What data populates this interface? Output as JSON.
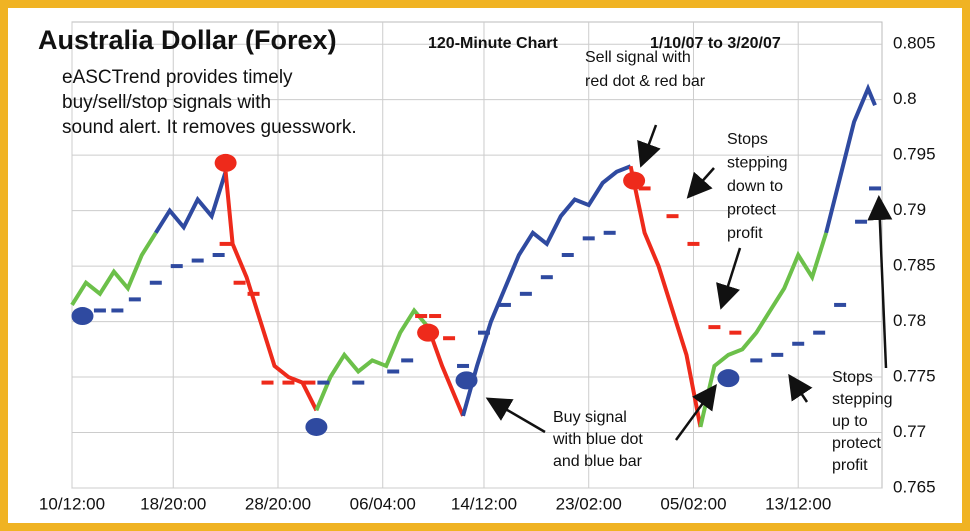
{
  "chart_data": {
    "type": "line",
    "title": "Australia Dollar (Forex)",
    "subtitle": "120-Minute Chart",
    "date_range": "1/10/07 to 3/20/07",
    "description": [
      "eASCTrend provides timely",
      "buy/sell/stop signals with",
      "sound alert. It removes guesswork."
    ],
    "annotations": [
      [
        "Sell signal with",
        "red dot & red bar"
      ],
      [
        "Stops",
        "stepping",
        "down to",
        "protect",
        "profit"
      ],
      [
        "Buy signal",
        "with blue dot",
        "and blue bar"
      ],
      [
        "Stops",
        "stepping",
        "up to",
        "protect",
        "profit"
      ]
    ],
    "xlim": [
      0,
      232
    ],
    "xticks": [
      {
        "value": 0,
        "label": "10/12:00"
      },
      {
        "value": 29,
        "label": "18/20:00"
      },
      {
        "value": 59,
        "label": "28/20:00"
      },
      {
        "value": 89,
        "label": "06/04:00"
      },
      {
        "value": 118,
        "label": "14/12:00"
      },
      {
        "value": 148,
        "label": "23/02:00"
      },
      {
        "value": 178,
        "label": "05/02:00"
      },
      {
        "value": 208,
        "label": "13/12:00"
      }
    ],
    "ylim": [
      0.765,
      0.807
    ],
    "yticks": [
      0.765,
      0.77,
      0.775,
      0.78,
      0.785,
      0.79,
      0.795,
      0.8,
      0.805
    ],
    "grid": true,
    "series": [
      {
        "color": "#6cc04a",
        "x": [
          0,
          4,
          8,
          12,
          16,
          20,
          24
        ],
        "values": [
          0.7815,
          0.7835,
          0.7825,
          0.7845,
          0.783,
          0.786,
          0.788
        ]
      },
      {
        "color": "#2f4aa0",
        "x": [
          24,
          28,
          32,
          36,
          40,
          44
        ],
        "values": [
          0.788,
          0.79,
          0.7885,
          0.791,
          0.7895,
          0.7935
        ]
      },
      {
        "color": "#ee2a1b",
        "x": [
          44,
          46,
          50,
          54,
          58,
          62,
          66,
          70
        ],
        "values": [
          0.7935,
          0.787,
          0.784,
          0.78,
          0.776,
          0.775,
          0.7745,
          0.772
        ]
      },
      {
        "color": "#6cc04a",
        "x": [
          70,
          74,
          78,
          82,
          86,
          90,
          94,
          98,
          102
        ],
        "values": [
          0.772,
          0.775,
          0.777,
          0.7755,
          0.7765,
          0.776,
          0.779,
          0.781,
          0.7795
        ]
      },
      {
        "color": "#ee2a1b",
        "x": [
          102,
          106,
          110,
          112
        ],
        "values": [
          0.7795,
          0.776,
          0.773,
          0.7715
        ]
      },
      {
        "color": "#2f4aa0",
        "x": [
          112,
          116,
          120,
          124,
          128,
          132,
          136,
          140,
          144,
          148,
          152,
          156,
          160
        ],
        "values": [
          0.7715,
          0.776,
          0.78,
          0.783,
          0.786,
          0.788,
          0.787,
          0.7895,
          0.791,
          0.7905,
          0.7925,
          0.7935,
          0.794
        ]
      },
      {
        "color": "#ee2a1b",
        "x": [
          160,
          164,
          168,
          172,
          176,
          180
        ],
        "values": [
          0.794,
          0.788,
          0.785,
          0.781,
          0.777,
          0.7705
        ]
      },
      {
        "color": "#6cc04a",
        "x": [
          180,
          184,
          188,
          192,
          196,
          200,
          204,
          208,
          212,
          216
        ],
        "values": [
          0.7705,
          0.776,
          0.777,
          0.7775,
          0.779,
          0.781,
          0.783,
          0.786,
          0.784,
          0.788
        ]
      },
      {
        "color": "#2f4aa0",
        "x": [
          216,
          220,
          224,
          228,
          230
        ],
        "values": [
          0.788,
          0.793,
          0.798,
          0.801,
          0.7995
        ]
      }
    ],
    "stops": [
      {
        "color": "#2f4aa0",
        "x": [
          3,
          8,
          13,
          18,
          24,
          30,
          36,
          42
        ],
        "values": [
          0.7805,
          0.781,
          0.781,
          0.782,
          0.7835,
          0.785,
          0.7855,
          0.786
        ]
      },
      {
        "color": "#ee2a1b",
        "x": [
          44,
          48,
          52,
          56,
          62,
          68
        ],
        "values": [
          0.787,
          0.7835,
          0.7825,
          0.7745,
          0.7745,
          0.7745
        ]
      },
      {
        "color": "#2f4aa0",
        "x": [
          72,
          82,
          92,
          96
        ],
        "values": [
          0.7745,
          0.7745,
          0.7755,
          0.7765
        ]
      },
      {
        "color": "#ee2a1b",
        "x": [
          100,
          104,
          108
        ],
        "values": [
          0.7805,
          0.7805,
          0.7785
        ]
      },
      {
        "color": "#2f4aa0",
        "x": [
          112,
          118,
          124,
          130,
          136,
          142,
          148,
          154
        ],
        "values": [
          0.776,
          0.779,
          0.7815,
          0.7825,
          0.784,
          0.786,
          0.7875,
          0.788
        ]
      },
      {
        "color": "#ee2a1b",
        "x": [
          164,
          172,
          178,
          184,
          190
        ],
        "values": [
          0.792,
          0.7895,
          0.787,
          0.7795,
          0.779
        ]
      },
      {
        "color": "#2f4aa0",
        "x": [
          196,
          202,
          208,
          214,
          220,
          226,
          230
        ],
        "values": [
          0.7765,
          0.777,
          0.778,
          0.779,
          0.7815,
          0.789,
          0.792
        ]
      }
    ],
    "signals": {
      "x": [
        3,
        44,
        70,
        102,
        113,
        161,
        188
      ],
      "values": [
        0.7805,
        0.7943,
        0.7705,
        0.779,
        0.7747,
        0.7927,
        0.7749
      ],
      "colors": [
        "#2f4aa0",
        "#ee2a1b",
        "#2f4aa0",
        "#ee2a1b",
        "#2f4aa0",
        "#ee2a1b",
        "#2f4aa0"
      ]
    }
  }
}
